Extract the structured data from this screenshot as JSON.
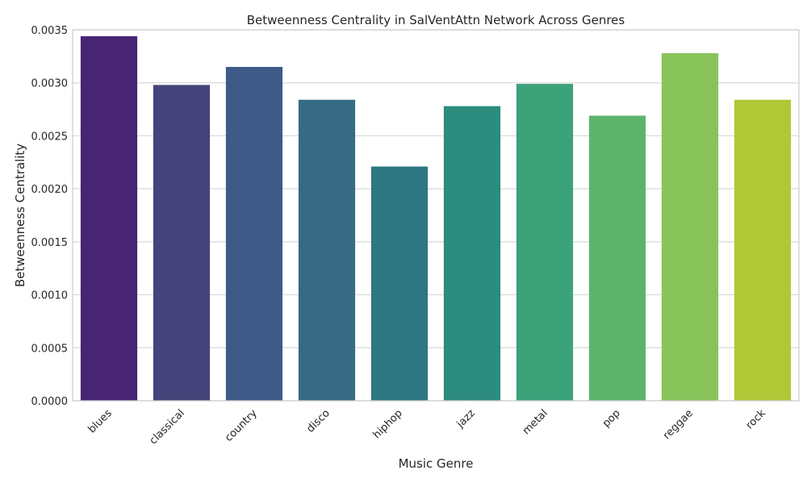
{
  "chart_data": {
    "type": "bar",
    "title": "Betweenness Centrality in SalVentAttn Network Across Genres",
    "xlabel": "Music Genre",
    "ylabel": "Betweenness Centrality",
    "categories": [
      "blues",
      "classical",
      "country",
      "disco",
      "hiphop",
      "jazz",
      "metal",
      "pop",
      "reggae",
      "rock"
    ],
    "values": [
      0.00344,
      0.00298,
      0.00315,
      0.00284,
      0.00221,
      0.00278,
      0.00299,
      0.00269,
      0.00328,
      0.00284
    ],
    "colors": [
      "#482475",
      "#46437a",
      "#3e5a87",
      "#366b83",
      "#2d7782",
      "#2c8c7e",
      "#3ba27a",
      "#5cb46c",
      "#88c35a",
      "#b0c835"
    ],
    "ylim": [
      0,
      0.0035
    ],
    "yticks": [
      "0.0000",
      "0.0005",
      "0.0010",
      "0.0015",
      "0.0020",
      "0.0025",
      "0.0030",
      "0.0035"
    ],
    "grid": true,
    "legend": "none"
  }
}
